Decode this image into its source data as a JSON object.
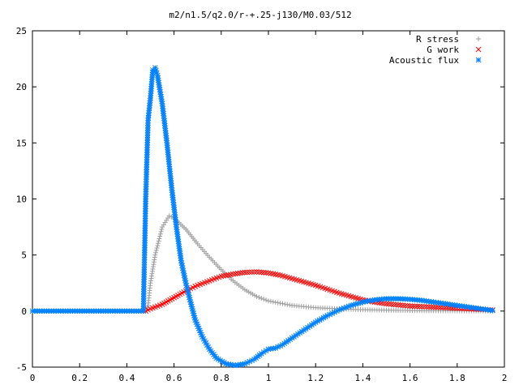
{
  "chart_data": {
    "type": "scatter",
    "title": "m2/n1.5/q2.0/r-+.25-j130/M0.03/512",
    "xlabel": "",
    "ylabel": "",
    "xlim": [
      0,
      2
    ],
    "ylim": [
      -5,
      25
    ],
    "xticks": [
      "0",
      "0.2",
      "0.4",
      "0.6",
      "0.8",
      "1",
      "1.2",
      "1.4",
      "1.6",
      "1.8",
      "2"
    ],
    "yticks": [
      "-5",
      "0",
      "5",
      "10",
      "15",
      "20",
      "25"
    ],
    "grid": false,
    "legend_position": "top-right",
    "series": [
      {
        "name": "R stress",
        "color": "#a0a0a0",
        "marker": "plus",
        "points": [
          [
            0.0,
            0
          ],
          [
            0.1,
            0
          ],
          [
            0.2,
            0
          ],
          [
            0.3,
            0
          ],
          [
            0.4,
            0
          ],
          [
            0.48,
            0
          ],
          [
            0.49,
            0.5
          ],
          [
            0.5,
            2.5
          ],
          [
            0.52,
            5.0
          ],
          [
            0.55,
            7.5
          ],
          [
            0.58,
            8.5
          ],
          [
            0.6,
            8.3
          ],
          [
            0.65,
            7.3
          ],
          [
            0.7,
            6.0
          ],
          [
            0.75,
            4.8
          ],
          [
            0.8,
            3.7
          ],
          [
            0.85,
            2.7
          ],
          [
            0.9,
            1.9
          ],
          [
            0.95,
            1.3
          ],
          [
            1.0,
            0.9
          ],
          [
            1.1,
            0.5
          ],
          [
            1.2,
            0.3
          ],
          [
            1.3,
            0.2
          ],
          [
            1.4,
            0.12
          ],
          [
            1.5,
            0.08
          ],
          [
            1.6,
            0.05
          ],
          [
            1.7,
            0.03
          ],
          [
            1.8,
            0.02
          ],
          [
            1.9,
            0.01
          ],
          [
            1.95,
            0.0
          ]
        ]
      },
      {
        "name": "G work",
        "color": "#ff0000",
        "marker": "cross",
        "points": [
          [
            0.48,
            0
          ],
          [
            0.5,
            0.2
          ],
          [
            0.55,
            0.6
          ],
          [
            0.6,
            1.2
          ],
          [
            0.65,
            1.8
          ],
          [
            0.7,
            2.3
          ],
          [
            0.75,
            2.7
          ],
          [
            0.8,
            3.1
          ],
          [
            0.85,
            3.3
          ],
          [
            0.9,
            3.45
          ],
          [
            0.95,
            3.5
          ],
          [
            1.0,
            3.4
          ],
          [
            1.05,
            3.2
          ],
          [
            1.1,
            2.9
          ],
          [
            1.15,
            2.6
          ],
          [
            1.2,
            2.3
          ],
          [
            1.25,
            1.95
          ],
          [
            1.3,
            1.6
          ],
          [
            1.35,
            1.3
          ],
          [
            1.4,
            1.0
          ],
          [
            1.45,
            0.8
          ],
          [
            1.5,
            0.65
          ],
          [
            1.55,
            0.55
          ],
          [
            1.6,
            0.45
          ],
          [
            1.7,
            0.35
          ],
          [
            1.8,
            0.25
          ],
          [
            1.9,
            0.15
          ],
          [
            1.95,
            0.1
          ]
        ]
      },
      {
        "name": "Acoustic flux",
        "color": "#0080ff",
        "marker": "star",
        "points": [
          [
            0.0,
            0
          ],
          [
            0.1,
            0
          ],
          [
            0.2,
            0
          ],
          [
            0.3,
            0
          ],
          [
            0.4,
            0
          ],
          [
            0.47,
            0
          ],
          [
            0.48,
            10.0
          ],
          [
            0.49,
            17.0
          ],
          [
            0.5,
            19.0
          ],
          [
            0.51,
            21.5
          ],
          [
            0.52,
            21.7
          ],
          [
            0.53,
            21.0
          ],
          [
            0.55,
            18.5
          ],
          [
            0.57,
            15.0
          ],
          [
            0.59,
            11.0
          ],
          [
            0.61,
            7.5
          ],
          [
            0.63,
            4.5
          ],
          [
            0.65,
            2.5
          ],
          [
            0.67,
            0.8
          ],
          [
            0.69,
            -0.8
          ],
          [
            0.72,
            -2.3
          ],
          [
            0.75,
            -3.4
          ],
          [
            0.78,
            -4.2
          ],
          [
            0.82,
            -4.7
          ],
          [
            0.86,
            -4.85
          ],
          [
            0.9,
            -4.7
          ],
          [
            0.94,
            -4.3
          ],
          [
            0.97,
            -3.8
          ],
          [
            1.0,
            -3.4
          ],
          [
            1.03,
            -3.3
          ],
          [
            1.06,
            -3.0
          ],
          [
            1.1,
            -2.4
          ],
          [
            1.15,
            -1.7
          ],
          [
            1.2,
            -1.0
          ],
          [
            1.25,
            -0.4
          ],
          [
            1.3,
            0.1
          ],
          [
            1.35,
            0.5
          ],
          [
            1.4,
            0.8
          ],
          [
            1.45,
            1.0
          ],
          [
            1.5,
            1.1
          ],
          [
            1.55,
            1.1
          ],
          [
            1.6,
            1.05
          ],
          [
            1.65,
            0.95
          ],
          [
            1.7,
            0.8
          ],
          [
            1.75,
            0.65
          ],
          [
            1.8,
            0.5
          ],
          [
            1.85,
            0.35
          ],
          [
            1.9,
            0.2
          ],
          [
            1.95,
            0.05
          ]
        ]
      }
    ]
  }
}
